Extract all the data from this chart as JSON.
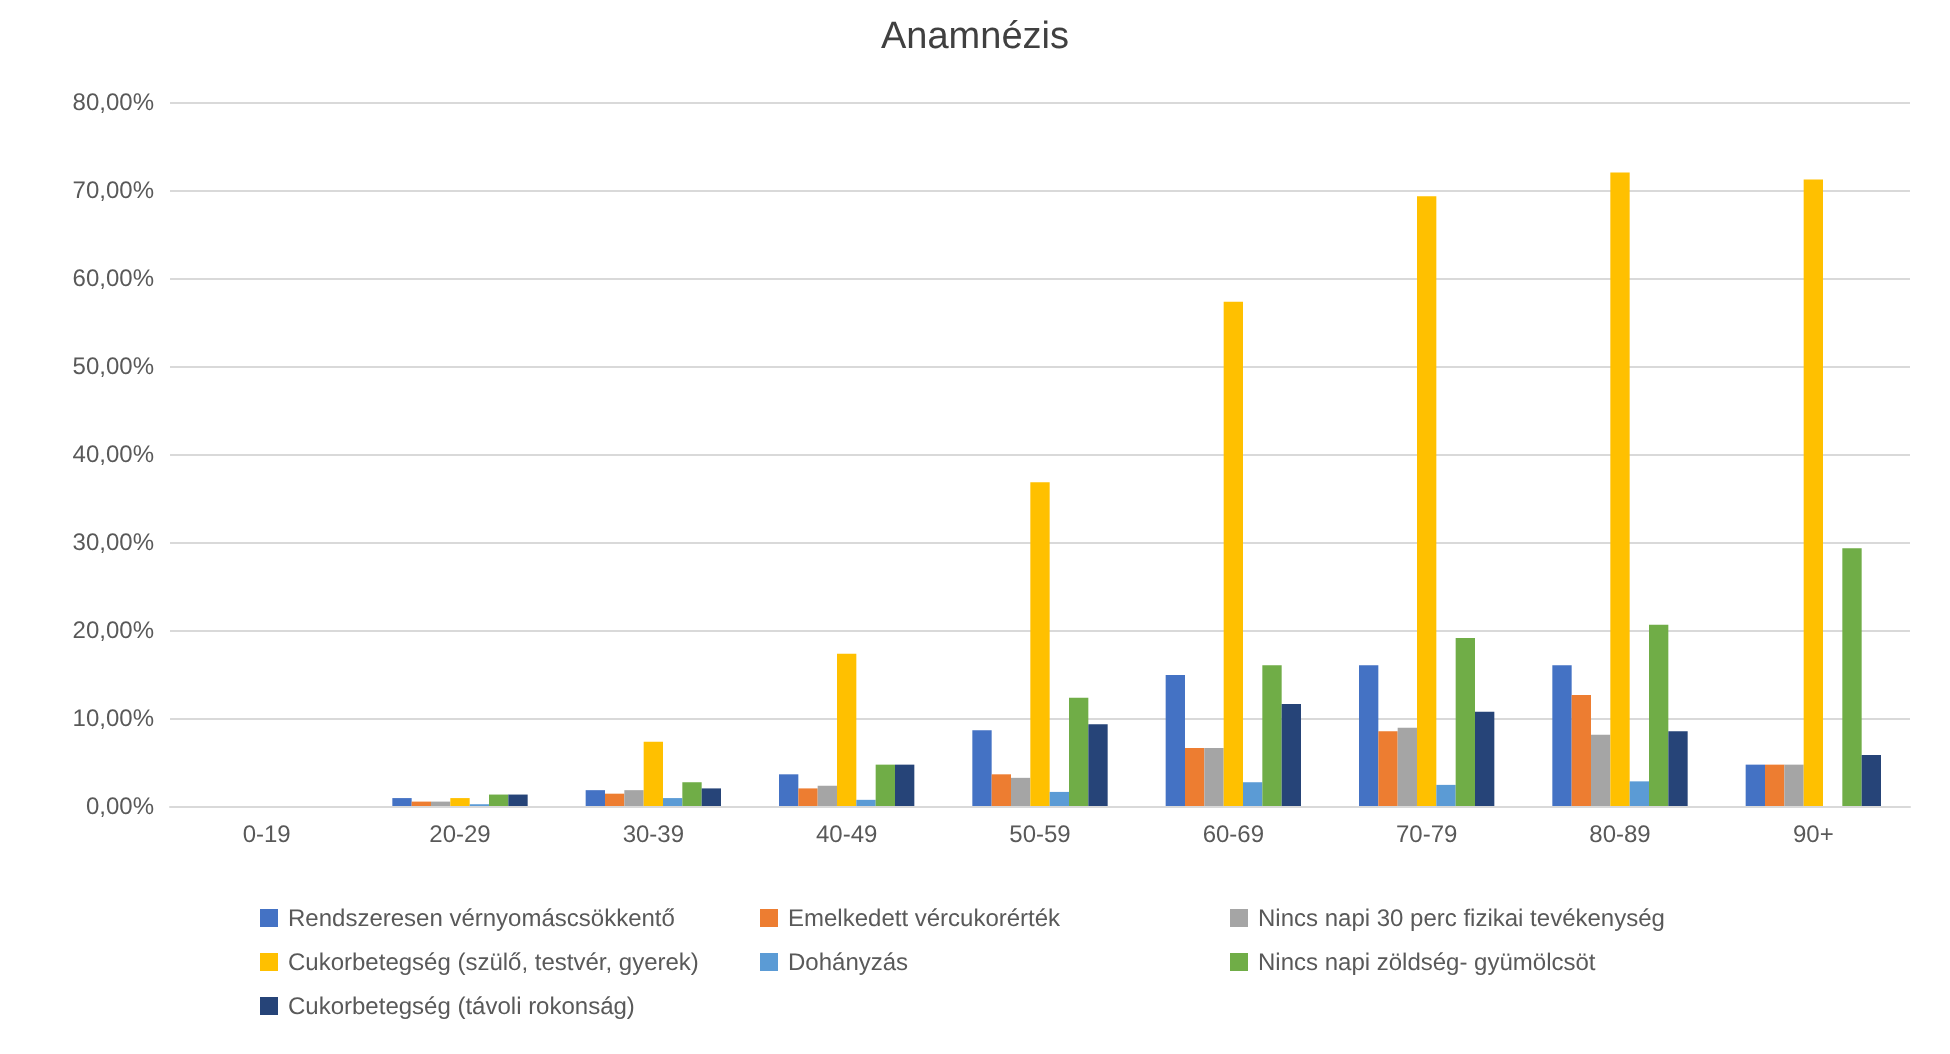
{
  "chart_data": {
    "type": "bar",
    "title": "Anamnézis",
    "categories": [
      "0-19",
      "20-29",
      "30-39",
      "40-49",
      "50-59",
      "60-69",
      "70-79",
      "80-89",
      "90+"
    ],
    "series": [
      {
        "name": "Rendszeresen vérnyomáscsökkentő",
        "color": "#4472c4",
        "values": [
          0,
          0.9,
          1.8,
          3.6,
          8.6,
          14.9,
          16.0,
          16.0,
          4.7
        ]
      },
      {
        "name": "Emelkedett vércukorérték",
        "color": "#ed7d31",
        "values": [
          0,
          0.5,
          1.4,
          2.0,
          3.6,
          6.6,
          8.5,
          12.6,
          4.7
        ]
      },
      {
        "name": "Nincs napi 30 perc fizikai tevékenység",
        "color": "#a5a5a5",
        "values": [
          0,
          0.5,
          1.8,
          2.3,
          3.2,
          6.6,
          8.9,
          8.1,
          4.7
        ]
      },
      {
        "name": "Cukorbetegség (szülő, testvér, gyerek)",
        "color": "#ffc000",
        "values": [
          0,
          0.9,
          7.3,
          17.3,
          36.8,
          57.3,
          69.3,
          72.0,
          71.2
        ]
      },
      {
        "name": "Dohányzás",
        "color": "#5b9bd5",
        "values": [
          0,
          0.2,
          0.9,
          0.7,
          1.6,
          2.7,
          2.4,
          2.8,
          0
        ]
      },
      {
        "name": "Nincs napi zöldség- gyümölcsöt",
        "color": "#70ad47",
        "values": [
          0,
          1.3,
          2.7,
          4.7,
          12.3,
          16.0,
          19.1,
          20.6,
          29.3
        ]
      },
      {
        "name": "Cukorbetegség (távoli rokonság)",
        "color": "#264478",
        "values": [
          0,
          1.3,
          2.0,
          4.7,
          9.3,
          11.6,
          10.7,
          8.5,
          5.8
        ]
      }
    ],
    "ylim": [
      0,
      80
    ],
    "yticks": [
      {
        "value": 0,
        "label": "0,00%"
      },
      {
        "value": 10,
        "label": "10,00%"
      },
      {
        "value": 20,
        "label": "20,00%"
      },
      {
        "value": 30,
        "label": "30,00%"
      },
      {
        "value": 40,
        "label": "40,00%"
      },
      {
        "value": 50,
        "label": "50,00%"
      },
      {
        "value": 60,
        "label": "60,00%"
      },
      {
        "value": 70,
        "label": "70,00%"
      },
      {
        "value": 80,
        "label": "80,00%"
      }
    ],
    "grid": "y",
    "legend": "bottom"
  }
}
